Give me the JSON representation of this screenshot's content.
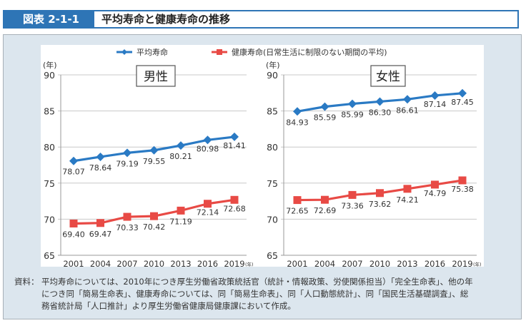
{
  "header": {
    "figure_number": "図表 2-1-1",
    "title": "平均寿命と健康寿命の推移"
  },
  "colors": {
    "header_blue": "#2e75b6",
    "life_expectancy": "#2a7ac4",
    "healthy_life_expectancy": "#e84a45",
    "panel_bg": "#dce6ee"
  },
  "legend": [
    {
      "name": "平均寿命",
      "color": "#2a7ac4",
      "marker": "diamond"
    },
    {
      "name": "健康寿命(日常生活に制限のない期間の平均)",
      "color": "#e84a45",
      "marker": "square"
    }
  ],
  "chart_data": [
    {
      "type": "line",
      "title": "男性",
      "ylabel": "(年)",
      "xlabel_unit": "(年)",
      "categories": [
        "2001",
        "2004",
        "2007",
        "2010",
        "2013",
        "2016",
        "2019"
      ],
      "ylim": [
        65,
        90
      ],
      "yticks": [
        65,
        70,
        75,
        80,
        85,
        90
      ],
      "grid": true,
      "series": [
        {
          "name": "平均寿命",
          "values": [
            78.07,
            78.64,
            79.19,
            79.55,
            80.21,
            80.98,
            81.41
          ]
        },
        {
          "name": "健康寿命(日常生活に制限のない期間の平均)",
          "values": [
            69.4,
            69.47,
            70.33,
            70.42,
            71.19,
            72.14,
            72.68
          ]
        }
      ],
      "labels": {
        "life": [
          "78.07",
          "78.64",
          "79.19",
          "79.55",
          "80.21",
          "80.98",
          "81.41"
        ],
        "healthy": [
          "69.40",
          "69.47",
          "70.33",
          "70.42",
          "71.19",
          "72.14",
          "72.68"
        ]
      }
    },
    {
      "type": "line",
      "title": "女性",
      "ylabel": "(年)",
      "xlabel_unit": "(年)",
      "categories": [
        "2001",
        "2004",
        "2007",
        "2010",
        "2013",
        "2016",
        "2019"
      ],
      "ylim": [
        65,
        90
      ],
      "yticks": [
        65,
        70,
        75,
        80,
        85,
        90
      ],
      "grid": true,
      "series": [
        {
          "name": "平均寿命",
          "values": [
            84.93,
            85.59,
            85.99,
            86.3,
            86.61,
            87.14,
            87.45
          ]
        },
        {
          "name": "健康寿命(日常生活に制限のない期間の平均)",
          "values": [
            72.65,
            72.69,
            73.36,
            73.62,
            74.21,
            74.79,
            75.38
          ]
        }
      ],
      "labels": {
        "life": [
          "84.93",
          "85.59",
          "85.99",
          "86.30",
          "86.61",
          "87.14",
          "87.45"
        ],
        "healthy": [
          "72.65",
          "72.69",
          "73.36",
          "73.62",
          "74.21",
          "74.79",
          "75.38"
        ]
      }
    }
  ],
  "note": {
    "label": "資料：",
    "lines": [
      "平均寿命については、2010年につき厚生労働省政策統括官（統計・情報政策、労使関係担当）「完全生命表」、他の年",
      "につき同「簡易生命表」、健康寿命については、同「簡易生命表」、同「人口動態統計」、同「国民生活基礎調査」、総",
      "務省統計局「人口推計」より厚生労働省健康局健康課において作成。"
    ]
  }
}
